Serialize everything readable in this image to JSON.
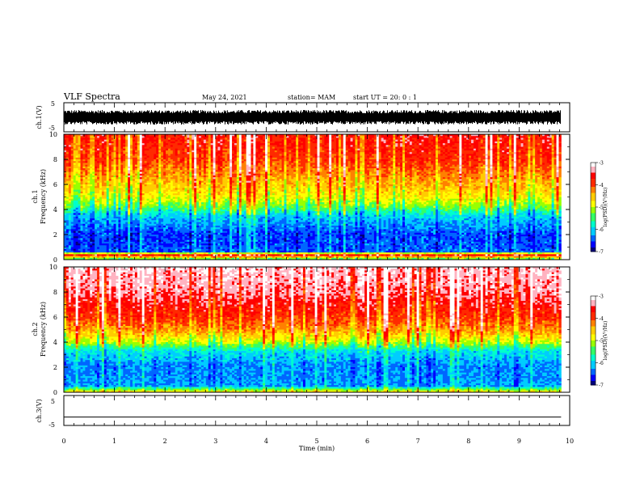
{
  "header": {
    "title": "VLF Spectra",
    "date": "May 24, 2021",
    "station": "station= MAM",
    "start": "start  UT =   20: 0  : 1"
  },
  "colormap": [
    "#00007a",
    "#0000ff",
    "#0066ff",
    "#00ccff",
    "#00ffcc",
    "#33ff66",
    "#99ff00",
    "#ffff00",
    "#ffcc00",
    "#ff8000",
    "#ff2a00",
    "#ff0000",
    "#ffb3c1",
    "#ffffff"
  ],
  "chart_data": [
    {
      "type": "line",
      "id": "ch1-waveform",
      "ylabel": "ch.1(V)",
      "ylim": [
        -5,
        5
      ],
      "yticks": [
        "5",
        "-5"
      ],
      "xlim": [
        0,
        10
      ],
      "data_end_min": 9.83,
      "description_values": {
        "signal_range": [
          -2.5,
          2.5
        ]
      }
    },
    {
      "type": "heatmap",
      "id": "ch1-spectrogram",
      "ylabel_channel": "ch.1",
      "ylabel": "Frequency  (kHz)",
      "ylim": [
        0,
        10
      ],
      "yticks": [
        "0",
        "2",
        "4",
        "6",
        "8",
        "10"
      ],
      "xlim": [
        0,
        10
      ],
      "data_end_min": 9.83,
      "colorbar": {
        "label": "log(PSD)(V²/Hz)",
        "range": [
          -7,
          -3
        ],
        "ticks": [
          "-3",
          "-4",
          "-5",
          "-6",
          "-7"
        ]
      },
      "levels_by_freq_khz": [
        [
          0,
          -5.6
        ],
        [
          0.4,
          -3.4
        ],
        [
          0.6,
          -6.4
        ],
        [
          2,
          -6.5
        ],
        [
          3.5,
          -6.0
        ],
        [
          4.2,
          -5.3
        ],
        [
          5,
          -4.8
        ],
        [
          6,
          -4.5
        ],
        [
          7,
          -4.2
        ],
        [
          8,
          -3.9
        ],
        [
          10,
          -3.7
        ]
      ]
    },
    {
      "type": "heatmap",
      "id": "ch2-spectrogram",
      "ylabel_channel": "ch.2",
      "ylabel": "Frequency  (kHz)",
      "ylim": [
        0,
        10
      ],
      "yticks": [
        "0",
        "2",
        "4",
        "6",
        "8",
        "10"
      ],
      "xlim": [
        0,
        10
      ],
      "data_end_min": 9.83,
      "colorbar": {
        "label": "log(PSD)(V²/Hz)",
        "range": [
          -7,
          -3
        ],
        "ticks": [
          "-3",
          "-4",
          "-5",
          "-6",
          "-7"
        ]
      },
      "levels_by_freq_khz": [
        [
          0,
          -4.6
        ],
        [
          0.5,
          -6.2
        ],
        [
          2,
          -6.3
        ],
        [
          3.3,
          -5.9
        ],
        [
          4,
          -5.0
        ],
        [
          5,
          -4.3
        ],
        [
          6,
          -3.9
        ],
        [
          8,
          -3.4
        ],
        [
          10,
          -3.2
        ]
      ]
    },
    {
      "type": "line",
      "id": "ch3-waveform",
      "ylabel": "ch.3(V)",
      "ylim": [
        -5,
        5
      ],
      "yticks": [
        "5",
        "-5"
      ],
      "xlim": [
        0,
        10
      ],
      "data_end_min": 9.83,
      "y": [
        -2.2,
        -2.2
      ]
    }
  ],
  "xaxis": {
    "label": "Time  (min)",
    "ticks": [
      "0",
      "1",
      "2",
      "3",
      "4",
      "5",
      "6",
      "7",
      "8",
      "9",
      "10"
    ]
  }
}
